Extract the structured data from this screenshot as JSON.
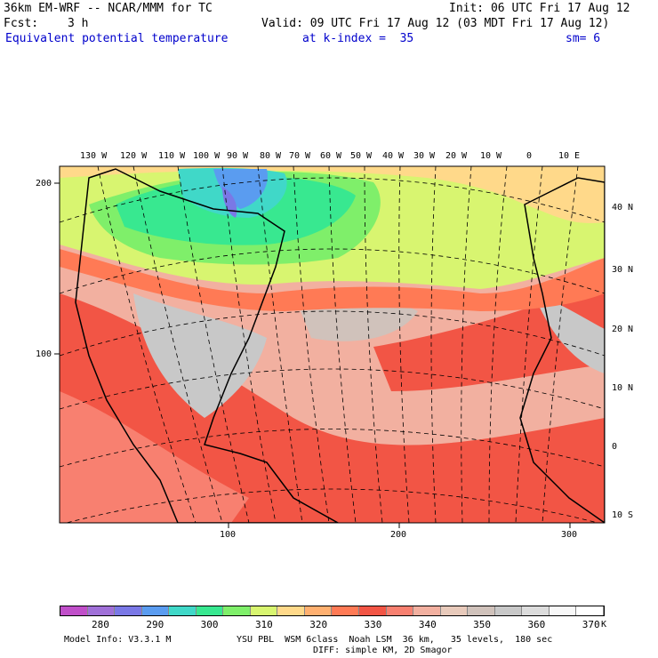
{
  "header": {
    "model": "36km EM-WRF -- NCAR/MMM for TC",
    "init": "Init: 06 UTC Fri 17 Aug 12",
    "fcst_label": "Fcst:",
    "fcst_value": "3 h",
    "valid": "Valid: 09 UTC Fri 17 Aug 12 (03 MDT Fri 17 Aug 12)",
    "field": "Equivalent potential temperature",
    "level": "at k-index =  35",
    "smoothing": "sm= 6"
  },
  "map": {
    "lon_labels": [
      "130 W",
      "120 W",
      "110 W",
      "100 W",
      "90 W",
      "80 W",
      "70 W",
      "60 W",
      "50 W",
      "40 W",
      "30 W",
      "20 W",
      "10 W",
      "0",
      "10 E"
    ],
    "lat_labels": [
      "40 N",
      "30 N",
      "20 N",
      "10 N",
      "0",
      "10 S"
    ],
    "left_axis_ticks": [
      "200",
      "100"
    ],
    "bottom_axis_ticks": [
      "100",
      "200",
      "300"
    ]
  },
  "colorbar": {
    "labels": [
      "280",
      "290",
      "300",
      "310",
      "320",
      "330",
      "340",
      "350",
      "360",
      "370"
    ],
    "unit": "K",
    "colors": [
      "#c04fc9",
      "#a070d8",
      "#7a78e6",
      "#5a9cf0",
      "#40d8c8",
      "#38e890",
      "#7fef6a",
      "#d8f570",
      "#ffd98a",
      "#ffb070",
      "#ff7a55",
      "#f25545",
      "#f88070",
      "#f2b0a0",
      "#e8cabb",
      "#d0c2bb",
      "#c8c8c8",
      "#dcdcdc",
      "#f8f8f8",
      "#ffffff"
    ]
  },
  "footer": {
    "model_info": "Model Info: V3.3.1 M",
    "physics": "YSU PBL  WSM 6class  Noah LSM  36 km,   35 levels,  180 sec",
    "diffusion": "DIFF: simple KM, 2D Smagor"
  }
}
